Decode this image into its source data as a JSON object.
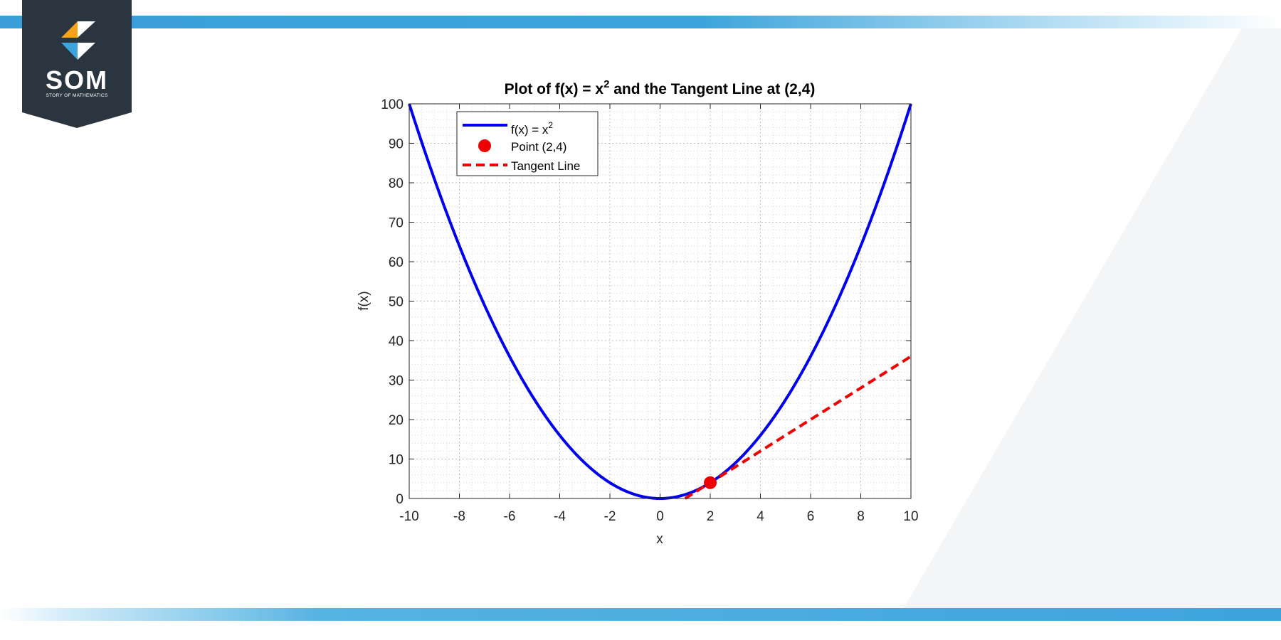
{
  "brand": {
    "logo_text": "SOM",
    "logo_subtitle": "STORY OF MATHEMATICS",
    "colors": {
      "navy": "#2a3540",
      "orange": "#f7a21b",
      "blue": "#3ea5dc",
      "stripe": "#3ea5dc"
    }
  },
  "chart_data": {
    "type": "line",
    "title": "Plot of f(x) = x",
    "title_superscript": "2",
    "title_suffix": " and the Tangent Line at (2,4)",
    "xlabel": "x",
    "ylabel": "f(x)",
    "xlim": [
      -10,
      10
    ],
    "ylim": [
      0,
      100
    ],
    "xticks": [
      "-10",
      "-8",
      "-6",
      "-4",
      "-2",
      "0",
      "2",
      "4",
      "6",
      "8",
      "10"
    ],
    "yticks": [
      "0",
      "10",
      "20",
      "30",
      "40",
      "50",
      "60",
      "70",
      "80",
      "90",
      "100"
    ],
    "grid": true,
    "minor_grid": true,
    "legend_position": "top-left",
    "series": [
      {
        "name": "f(x) = x",
        "name_superscript": "2",
        "kind": "curve",
        "function": "x^2",
        "x_range": [
          -10,
          10
        ],
        "color": "#0000ee",
        "style": "solid"
      },
      {
        "name": "Point (2,4)",
        "kind": "point",
        "x": 2,
        "y": 4,
        "color": "#ee0000",
        "style": "marker"
      },
      {
        "name": "Tangent Line",
        "kind": "line",
        "function": "4x-4",
        "x_range": [
          1,
          10
        ],
        "color": "#ee0000",
        "style": "dashed"
      }
    ]
  }
}
